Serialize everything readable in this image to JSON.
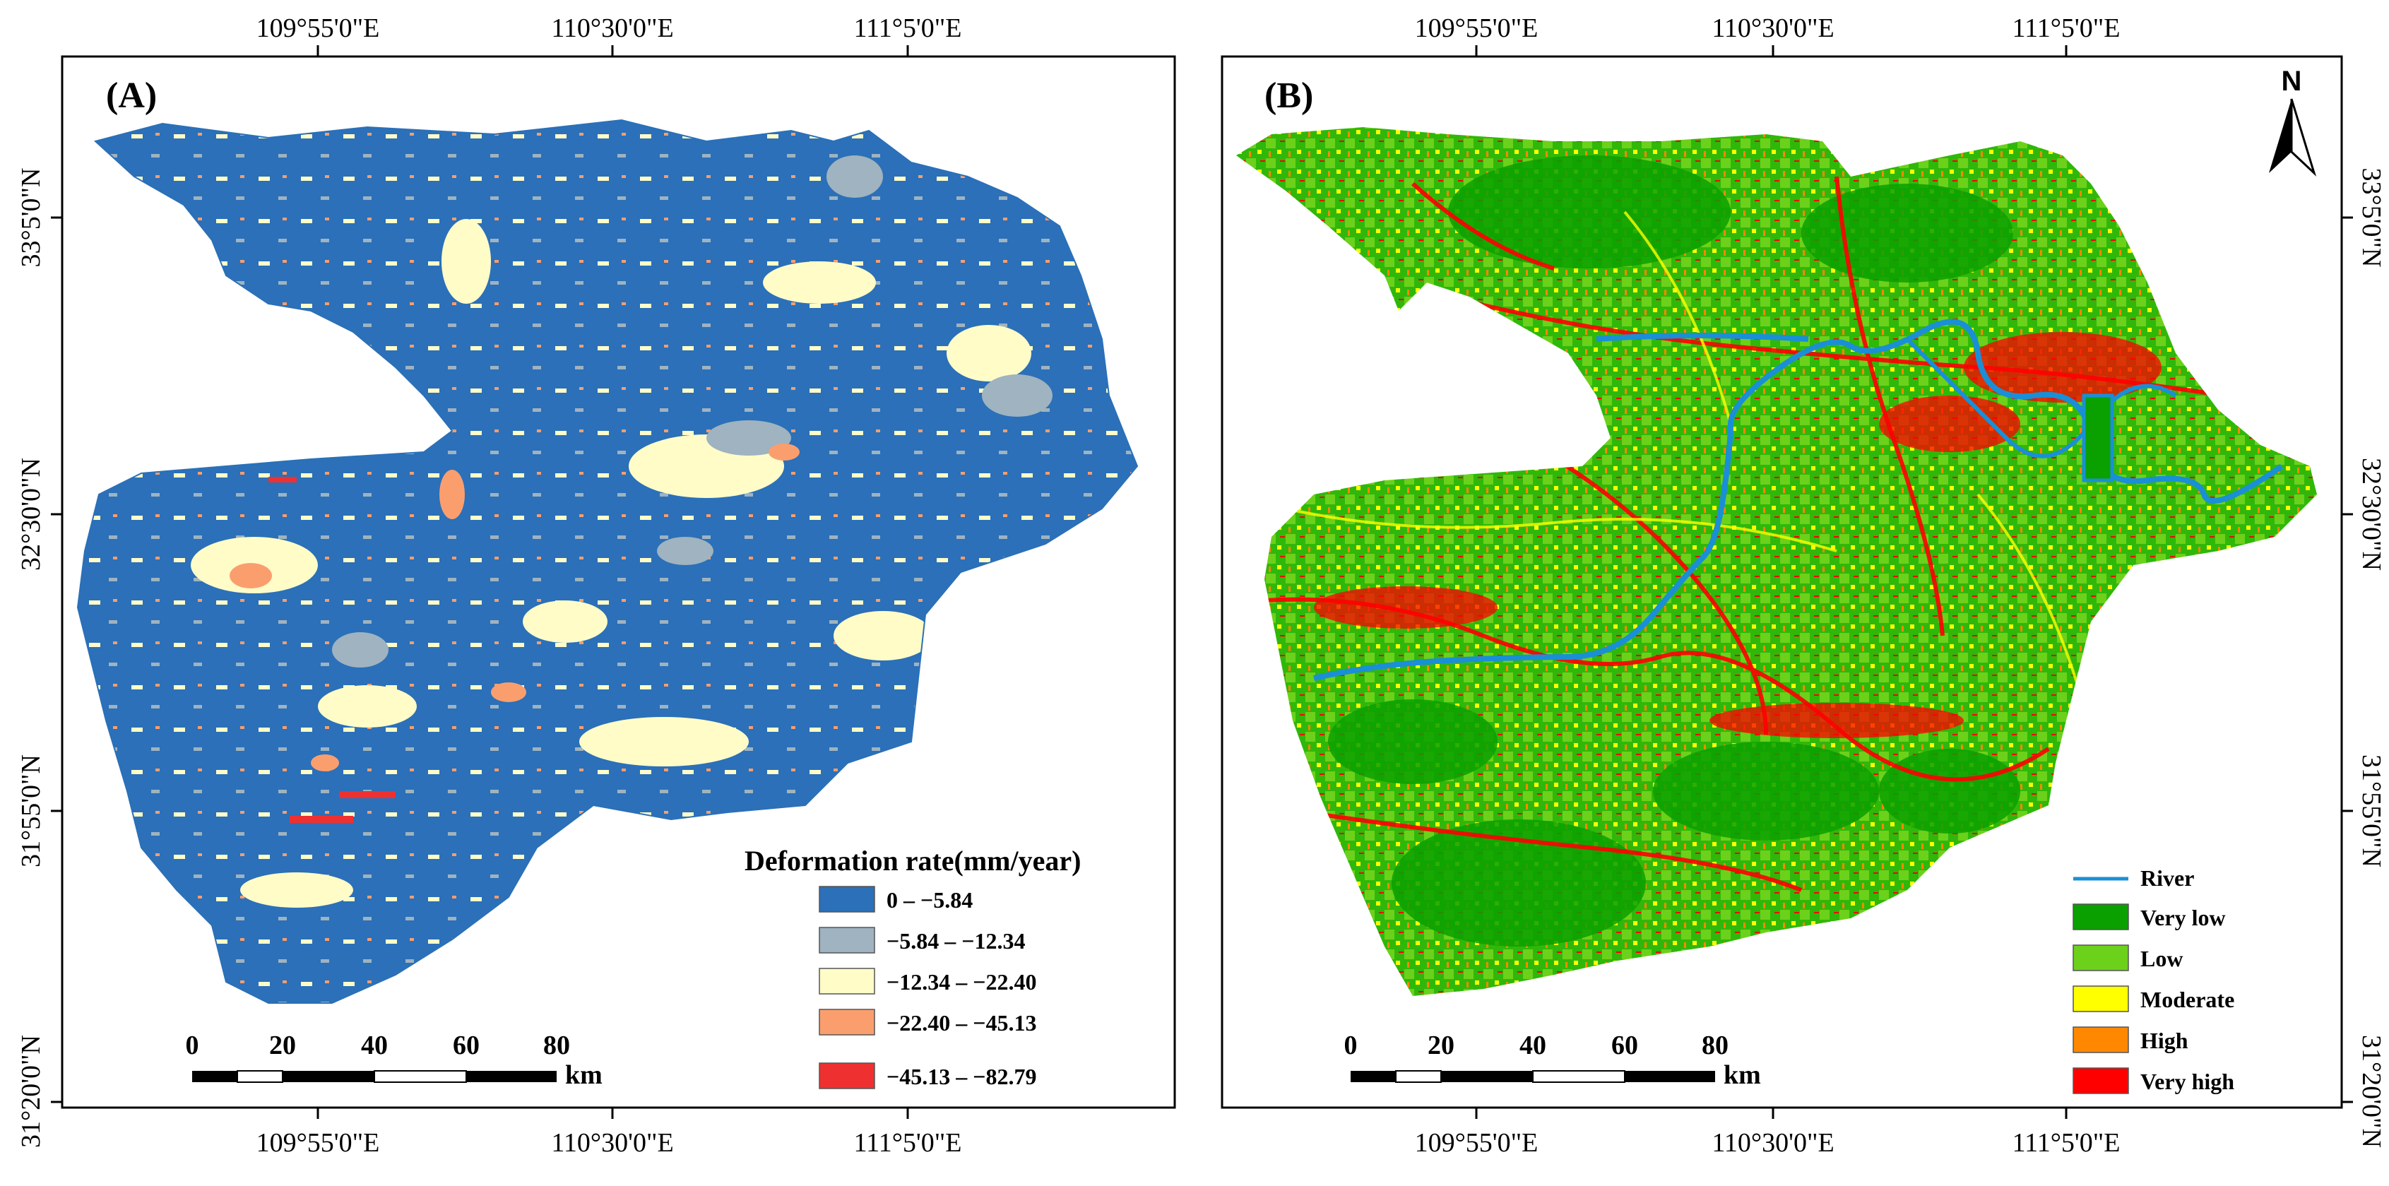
{
  "panels": [
    {
      "label": "(A)",
      "top_ticks": [
        "109°55'0\"E",
        "110°30'0\"E",
        "111°5'0\"E"
      ],
      "bottom_ticks": [
        "109°55'0\"E",
        "110°30'0\"E",
        "111°5'0\"E"
      ],
      "left_ticks": [
        "33°5'0\"N",
        "32°30'0\"N",
        "31°55'0\"N",
        "31°20'0\"N"
      ],
      "legend_title": "Deformation rate(mm/year)",
      "legend": [
        {
          "label": "0 – −5.84",
          "color": "#2b70b8"
        },
        {
          "label": "−5.84 – −12.34",
          "color": "#9fb3c0"
        },
        {
          "label": "−12.34 – −22.40",
          "color": "#fffcc8"
        },
        {
          "label": "−22.40 – −45.13",
          "color": "#fb9e6e"
        },
        {
          "label": "−45.13 – −82.79",
          "color": "#ef3030"
        }
      ],
      "scale_labels": [
        "0",
        "20",
        "40",
        "60",
        "80"
      ],
      "scale_unit": "km"
    },
    {
      "label": "(B)",
      "top_ticks": [
        "109°55'0\"E",
        "110°30'0\"E",
        "111°5'0\"E"
      ],
      "bottom_ticks": [
        "109°55'0\"E",
        "110°30'0\"E",
        "111°5'0\"E"
      ],
      "right_ticks": [
        "33°5'0\"N",
        "32°30'0\"N",
        "31°55'0\"N",
        "31°20'0\"N"
      ],
      "north_label": "N",
      "legend": [
        {
          "label": "River",
          "color": "#1a8fd6",
          "kind": "line"
        },
        {
          "label": "Very low",
          "color": "#0aa000"
        },
        {
          "label": "Low",
          "color": "#6cd11a"
        },
        {
          "label": "Moderate",
          "color": "#ffff00"
        },
        {
          "label": "High",
          "color": "#ff8800"
        },
        {
          "label": "Very high",
          "color": "#ff0000"
        }
      ],
      "scale_labels": [
        "0",
        "20",
        "40",
        "60",
        "80"
      ],
      "scale_unit": "km"
    }
  ]
}
